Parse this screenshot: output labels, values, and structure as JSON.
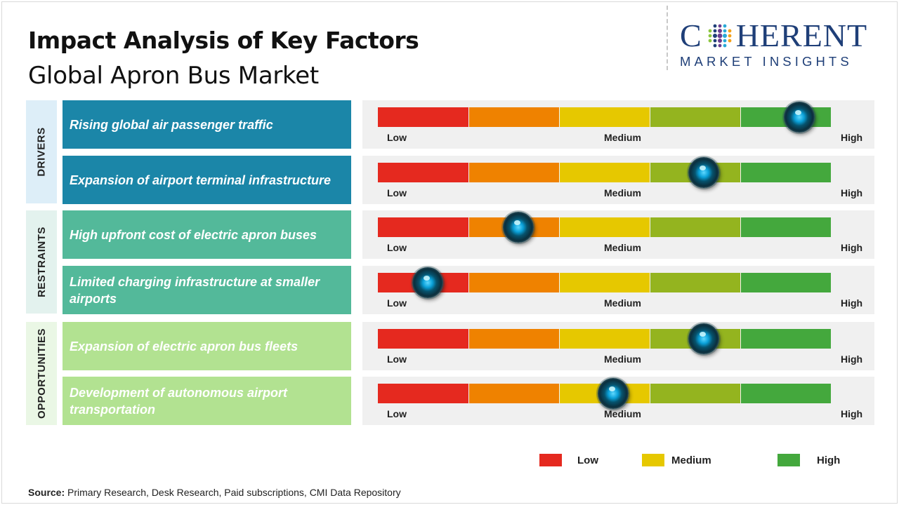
{
  "header": {
    "title": "Impact Analysis of Key Factors",
    "subtitle": "Global Apron Bus Market"
  },
  "logo": {
    "top_text_left": "C",
    "top_text_right": "HERENT",
    "bottom_text": "MARKET INSIGHTS",
    "brand_color": "#1f3f78"
  },
  "scale_labels": {
    "low": "Low",
    "medium": "Medium",
    "high": "High"
  },
  "segment_colors": [
    "#e5291f",
    "#ef8200",
    "#e6c800",
    "#94b41f",
    "#44a83d"
  ],
  "categories": [
    {
      "label": "DRIVERS",
      "color": "#ddeef8",
      "factor_color": "#1b86a8"
    },
    {
      "label": "RESTRAINTS",
      "color": "#e3f2ee",
      "factor_color": "#53b99a"
    },
    {
      "label": "OPPORTUNITIES",
      "color": "#eaf7e5",
      "factor_color": "#b2e291"
    }
  ],
  "chart_data": {
    "type": "gauge-rating",
    "scale": [
      "Low",
      "Medium",
      "High"
    ],
    "value_range": [
      0,
      1
    ],
    "factors": [
      {
        "category": "DRIVERS",
        "label": "Rising global air passenger traffic",
        "impact": 0.93
      },
      {
        "category": "DRIVERS",
        "label": "Expansion of airport terminal infrastructure",
        "impact": 0.72
      },
      {
        "category": "RESTRAINTS",
        "label": "High upfront cost of electric apron buses",
        "impact": 0.31
      },
      {
        "category": "RESTRAINTS",
        "label": "Limited charging infrastructure at smaller airports",
        "impact": 0.11
      },
      {
        "category": "OPPORTUNITIES",
        "label": "Expansion of electric apron bus fleets",
        "impact": 0.72
      },
      {
        "category": "OPPORTUNITIES",
        "label": "Development of autonomous airport transportation",
        "impact": 0.52
      }
    ]
  },
  "legend": [
    {
      "label": "Low",
      "color": "#e5291f"
    },
    {
      "label": "Medium",
      "color": "#e6c800"
    },
    {
      "label": "High",
      "color": "#44a83d"
    }
  ],
  "source": {
    "label": "Source:",
    "text": "Primary Research, Desk Research, Paid subscriptions, CMI Data Repository"
  }
}
